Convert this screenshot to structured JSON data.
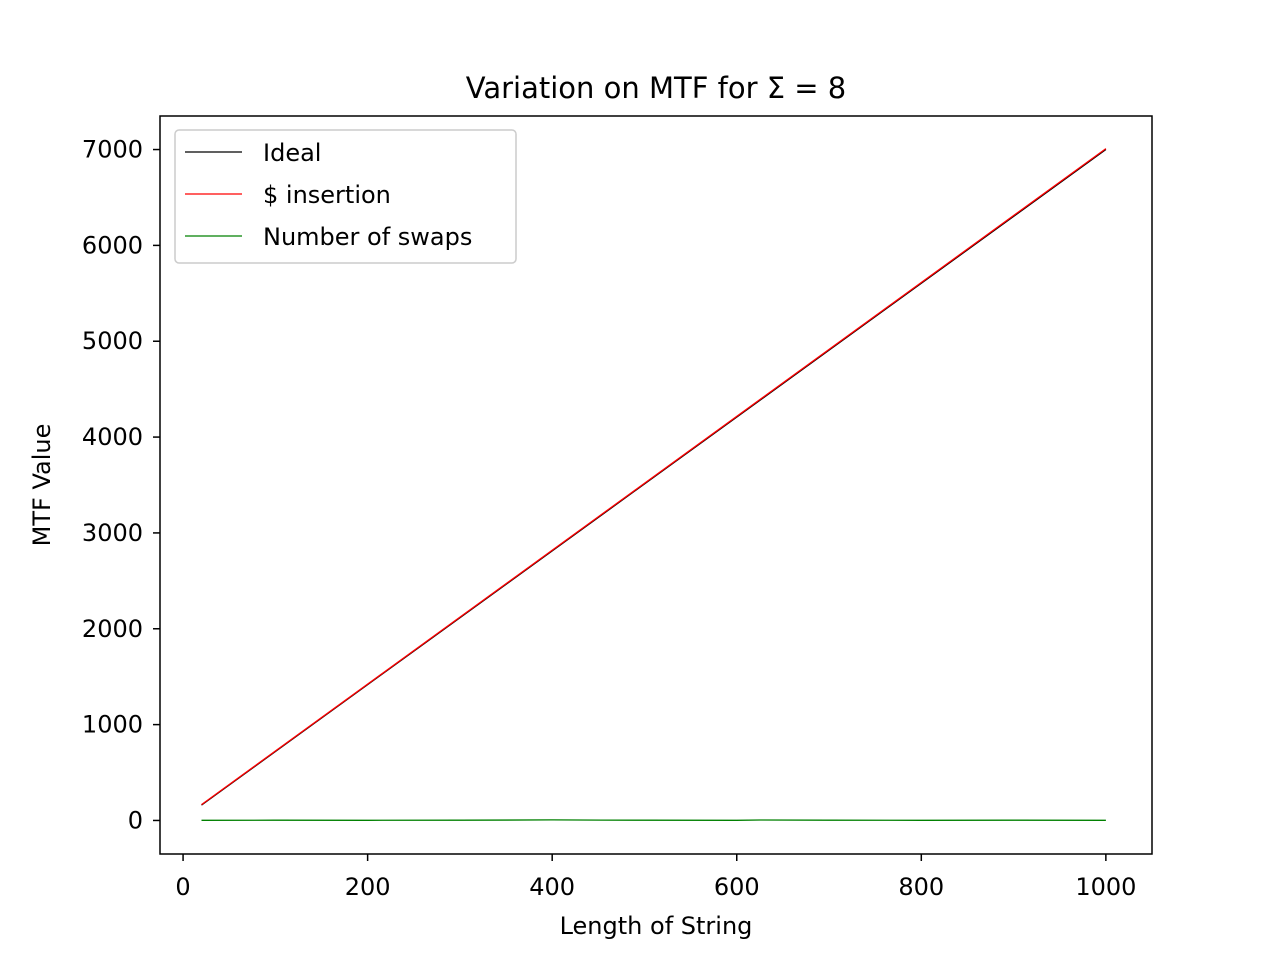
{
  "chart_data": {
    "type": "line",
    "title": "Variation on MTF for Σ = 8",
    "xlabel": "Length of String",
    "ylabel": "MTF Value",
    "xlim": [
      -25,
      1050
    ],
    "ylim": [
      -350,
      7350
    ],
    "xticks": [
      0,
      200,
      400,
      600,
      800,
      1000
    ],
    "yticks": [
      0,
      1000,
      2000,
      3000,
      4000,
      5000,
      6000,
      7000
    ],
    "grid": false,
    "legend_position": "top-left",
    "series": [
      {
        "name": "Ideal",
        "color": "#000000",
        "x": [
          20,
          1000
        ],
        "y": [
          160,
          7000
        ]
      },
      {
        "name": "$ insertion",
        "color": "#ff0000",
        "x": [
          20,
          1000
        ],
        "y": [
          165,
          7010
        ]
      },
      {
        "name": "Number of swaps",
        "color": "#008000",
        "x": [
          20,
          100,
          200,
          300,
          400,
          455,
          500,
          600,
          625,
          700,
          800,
          900,
          1000
        ],
        "y": [
          2,
          3,
          2,
          3,
          6,
          4,
          3,
          2,
          5,
          3,
          2,
          3,
          2
        ]
      }
    ]
  }
}
